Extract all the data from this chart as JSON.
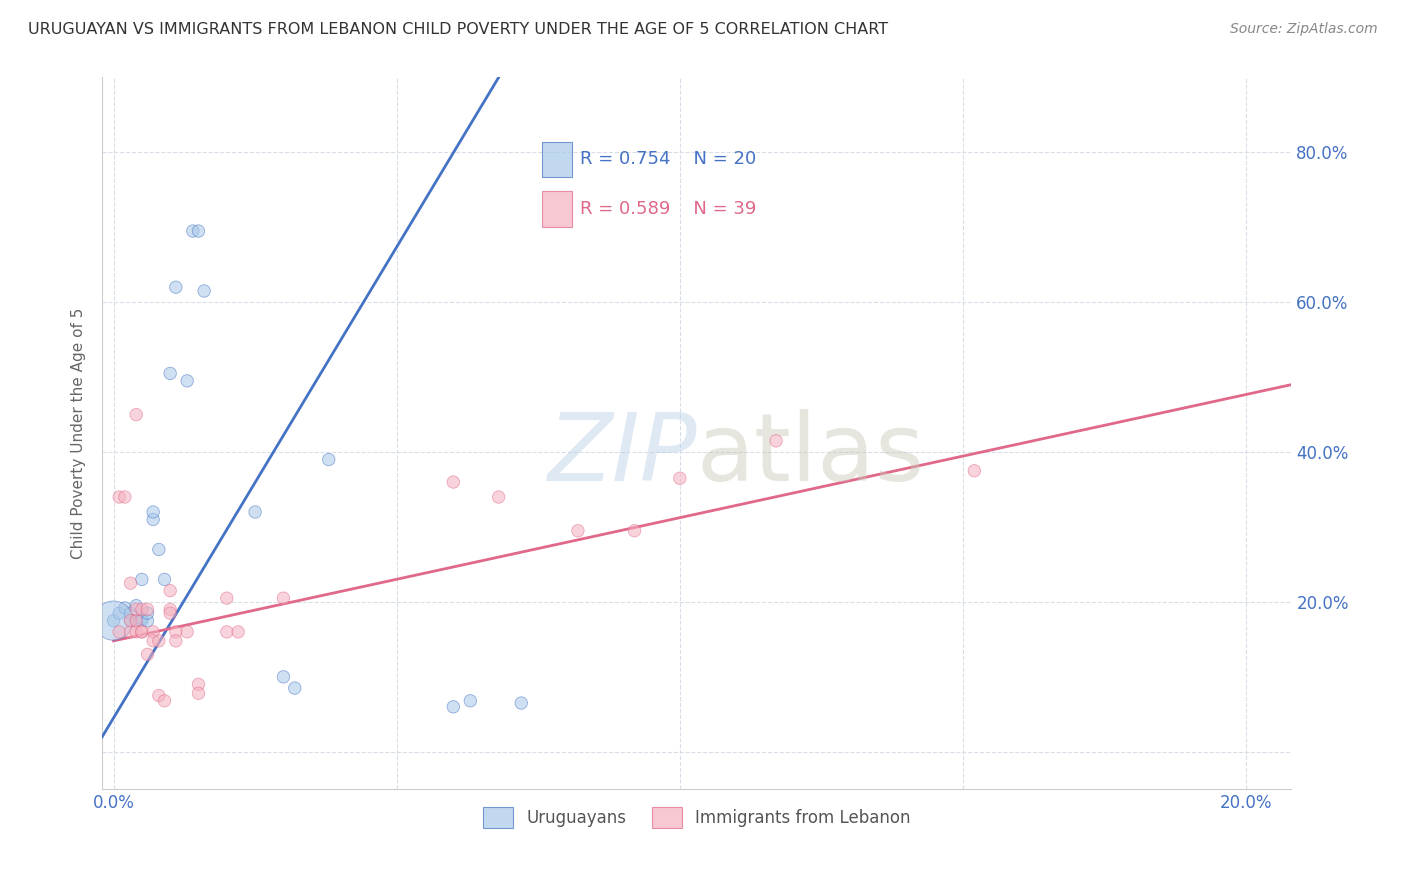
{
  "title": "URUGUAYAN VS IMMIGRANTS FROM LEBANON CHILD POVERTY UNDER THE AGE OF 5 CORRELATION CHART",
  "source": "Source: ZipAtlas.com",
  "ylabel": "Child Poverty Under the Age of 5",
  "ylim": [
    -0.05,
    0.9
  ],
  "xlim": [
    -0.002,
    0.208
  ],
  "yticks": [
    0.0,
    0.2,
    0.4,
    0.6,
    0.8
  ],
  "ytick_labels": [
    "",
    "20.0%",
    "40.0%",
    "60.0%",
    "80.0%"
  ],
  "xticks": [
    0.0,
    0.05,
    0.1,
    0.15,
    0.2
  ],
  "xtick_labels": [
    "0.0%",
    "",
    "",
    "",
    "20.0%"
  ],
  "blue_color": "#a8c8e8",
  "pink_color": "#f4b0c0",
  "blue_line_color": "#4472c4",
  "pink_line_color": "#e06888",
  "blue_scatter": [
    [
      0.0,
      0.175
    ],
    [
      0.001,
      0.185
    ],
    [
      0.002,
      0.192
    ],
    [
      0.003,
      0.175
    ],
    [
      0.003,
      0.185
    ],
    [
      0.004,
      0.175
    ],
    [
      0.004,
      0.195
    ],
    [
      0.005,
      0.178
    ],
    [
      0.005,
      0.23
    ],
    [
      0.005,
      0.175
    ],
    [
      0.006,
      0.175
    ],
    [
      0.006,
      0.185
    ],
    [
      0.007,
      0.31
    ],
    [
      0.007,
      0.32
    ],
    [
      0.008,
      0.27
    ],
    [
      0.009,
      0.23
    ],
    [
      0.01,
      0.505
    ],
    [
      0.011,
      0.62
    ],
    [
      0.013,
      0.495
    ],
    [
      0.014,
      0.695
    ],
    [
      0.015,
      0.695
    ],
    [
      0.016,
      0.615
    ],
    [
      0.025,
      0.32
    ],
    [
      0.03,
      0.1
    ],
    [
      0.032,
      0.085
    ],
    [
      0.038,
      0.39
    ],
    [
      0.06,
      0.06
    ],
    [
      0.063,
      0.068
    ],
    [
      0.072,
      0.065
    ],
    [
      0.0,
      0.175
    ]
  ],
  "blue_sizes": [
    80,
    80,
    80,
    80,
    80,
    80,
    80,
    80,
    80,
    80,
    80,
    80,
    80,
    80,
    80,
    80,
    80,
    80,
    80,
    80,
    80,
    80,
    80,
    80,
    80,
    80,
    80,
    80,
    80,
    800
  ],
  "pink_scatter": [
    [
      0.001,
      0.16
    ],
    [
      0.001,
      0.34
    ],
    [
      0.002,
      0.34
    ],
    [
      0.003,
      0.16
    ],
    [
      0.003,
      0.175
    ],
    [
      0.003,
      0.225
    ],
    [
      0.004,
      0.16
    ],
    [
      0.004,
      0.175
    ],
    [
      0.004,
      0.19
    ],
    [
      0.004,
      0.45
    ],
    [
      0.005,
      0.16
    ],
    [
      0.005,
      0.19
    ],
    [
      0.005,
      0.16
    ],
    [
      0.006,
      0.19
    ],
    [
      0.006,
      0.13
    ],
    [
      0.007,
      0.16
    ],
    [
      0.007,
      0.148
    ],
    [
      0.008,
      0.148
    ],
    [
      0.008,
      0.075
    ],
    [
      0.009,
      0.068
    ],
    [
      0.01,
      0.19
    ],
    [
      0.01,
      0.215
    ],
    [
      0.01,
      0.185
    ],
    [
      0.011,
      0.16
    ],
    [
      0.011,
      0.148
    ],
    [
      0.013,
      0.16
    ],
    [
      0.015,
      0.09
    ],
    [
      0.015,
      0.078
    ],
    [
      0.02,
      0.205
    ],
    [
      0.02,
      0.16
    ],
    [
      0.022,
      0.16
    ],
    [
      0.03,
      0.205
    ],
    [
      0.06,
      0.36
    ],
    [
      0.068,
      0.34
    ],
    [
      0.082,
      0.295
    ],
    [
      0.092,
      0.295
    ],
    [
      0.1,
      0.365
    ],
    [
      0.117,
      0.415
    ],
    [
      0.152,
      0.375
    ]
  ],
  "pink_sizes": [
    80,
    80,
    80,
    80,
    80,
    80,
    80,
    80,
    80,
    80,
    80,
    80,
    80,
    80,
    80,
    80,
    80,
    80,
    80,
    80,
    80,
    80,
    80,
    80,
    80,
    80,
    80,
    80,
    80,
    80,
    80,
    80,
    80,
    80,
    80,
    80,
    80,
    80,
    80
  ],
  "blue_line_x": [
    -0.002,
    0.068
  ],
  "blue_line_y": [
    0.02,
    0.9
  ],
  "pink_line_x": [
    0.0,
    0.208
  ],
  "pink_line_y": [
    0.148,
    0.49
  ],
  "grid_color": "#d8dde8",
  "bg_color": "#ffffff",
  "title_color": "#333333",
  "tick_color": "#4472c4"
}
